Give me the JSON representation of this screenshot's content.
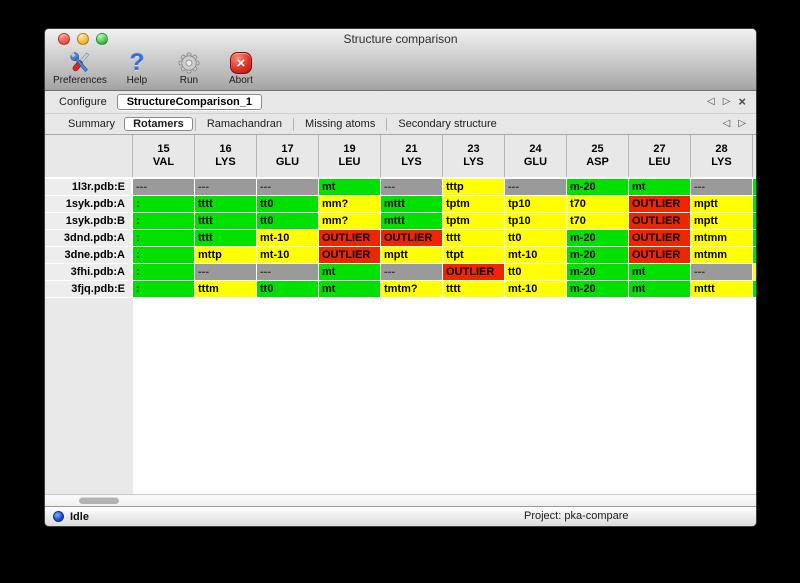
{
  "window": {
    "title": "Structure comparison"
  },
  "toolbar": {
    "items": [
      {
        "label": "Preferences",
        "icon": "tools-icon"
      },
      {
        "label": "Help",
        "icon": "help-icon",
        "glyph": "?"
      },
      {
        "label": "Run",
        "icon": "gear-icon"
      },
      {
        "label": "Abort",
        "icon": "abort-icon",
        "glyph": "×"
      }
    ]
  },
  "configure": {
    "label": "Configure",
    "instance_tab": "StructureComparison_1"
  },
  "nav": {
    "back": "◁",
    "forward": "▷",
    "close": "×"
  },
  "tabs": {
    "active": "Rotamers",
    "items": [
      {
        "label": "Summary"
      },
      {
        "label": "Rotamers"
      },
      {
        "label": "Ramachandran"
      },
      {
        "label": "Missing atoms"
      },
      {
        "label": "Secondary structure"
      }
    ]
  },
  "table": {
    "columns": [
      {
        "num": "15",
        "res": "VAL"
      },
      {
        "num": "16",
        "res": "LYS"
      },
      {
        "num": "17",
        "res": "GLU"
      },
      {
        "num": "19",
        "res": "LEU"
      },
      {
        "num": "21",
        "res": "LYS"
      },
      {
        "num": "23",
        "res": "LYS"
      },
      {
        "num": "24",
        "res": "GLU"
      },
      {
        "num": "25",
        "res": "ASP"
      },
      {
        "num": "27",
        "res": "LEU"
      },
      {
        "num": "28",
        "res": "LYS"
      }
    ],
    "rows": [
      {
        "label": "1l3r.pdb:E",
        "partial": "green",
        "cells": [
          {
            "text": "---",
            "status": "gray"
          },
          {
            "text": "---",
            "status": "gray"
          },
          {
            "text": "---",
            "status": "gray"
          },
          {
            "text": "mt",
            "status": "green"
          },
          {
            "text": "---",
            "status": "gray"
          },
          {
            "text": "tttp",
            "status": "yellow"
          },
          {
            "text": "---",
            "status": "gray"
          },
          {
            "text": "m-20",
            "status": "green"
          },
          {
            "text": "mt",
            "status": "green"
          },
          {
            "text": "---",
            "status": "gray"
          }
        ]
      },
      {
        "label": "1syk.pdb:A",
        "partial": "green",
        "cells": [
          {
            "text": ":",
            "status": "green"
          },
          {
            "text": "tttt",
            "status": "green"
          },
          {
            "text": "tt0",
            "status": "green"
          },
          {
            "text": "mm?",
            "status": "yellow"
          },
          {
            "text": "mttt",
            "status": "green"
          },
          {
            "text": "tptm",
            "status": "yellow"
          },
          {
            "text": "tp10",
            "status": "yellow"
          },
          {
            "text": "t70",
            "status": "yellow"
          },
          {
            "text": "OUTLIER",
            "status": "red"
          },
          {
            "text": "mptt",
            "status": "yellow"
          }
        ]
      },
      {
        "label": "1syk.pdb:B",
        "partial": "green",
        "cells": [
          {
            "text": ":",
            "status": "green"
          },
          {
            "text": "tttt",
            "status": "green"
          },
          {
            "text": "tt0",
            "status": "green"
          },
          {
            "text": "mm?",
            "status": "yellow"
          },
          {
            "text": "mttt",
            "status": "green"
          },
          {
            "text": "tptm",
            "status": "yellow"
          },
          {
            "text": "tp10",
            "status": "yellow"
          },
          {
            "text": "t70",
            "status": "yellow"
          },
          {
            "text": "OUTLIER",
            "status": "red"
          },
          {
            "text": "mptt",
            "status": "yellow"
          }
        ]
      },
      {
        "label": "3dnd.pdb:A",
        "partial": "green",
        "cells": [
          {
            "text": ":",
            "status": "green"
          },
          {
            "text": "tttt",
            "status": "green"
          },
          {
            "text": "mt-10",
            "status": "yellow"
          },
          {
            "text": "OUTLIER",
            "status": "red"
          },
          {
            "text": "OUTLIER",
            "status": "red"
          },
          {
            "text": "tttt",
            "status": "yellow"
          },
          {
            "text": "tt0",
            "status": "yellow"
          },
          {
            "text": "m-20",
            "status": "green"
          },
          {
            "text": "OUTLIER",
            "status": "red"
          },
          {
            "text": "mtmm",
            "status": "yellow"
          }
        ]
      },
      {
        "label": "3dne.pdb:A",
        "partial": "green",
        "cells": [
          {
            "text": ":",
            "status": "green"
          },
          {
            "text": "mttp",
            "status": "yellow"
          },
          {
            "text": "mt-10",
            "status": "yellow"
          },
          {
            "text": "OUTLIER",
            "status": "red"
          },
          {
            "text": "mptt",
            "status": "yellow"
          },
          {
            "text": "ttpt",
            "status": "yellow"
          },
          {
            "text": "mt-10",
            "status": "yellow"
          },
          {
            "text": "m-20",
            "status": "green"
          },
          {
            "text": "OUTLIER",
            "status": "red"
          },
          {
            "text": "mtmm",
            "status": "yellow"
          }
        ]
      },
      {
        "label": "3fhi.pdb:A",
        "partial": "yellow",
        "cells": [
          {
            "text": ":",
            "status": "green"
          },
          {
            "text": "---",
            "status": "gray"
          },
          {
            "text": "---",
            "status": "gray"
          },
          {
            "text": "mt",
            "status": "green"
          },
          {
            "text": "---",
            "status": "gray"
          },
          {
            "text": "OUTLIER",
            "status": "red"
          },
          {
            "text": "tt0",
            "status": "yellow"
          },
          {
            "text": "m-20",
            "status": "green"
          },
          {
            "text": "mt",
            "status": "green"
          },
          {
            "text": "---",
            "status": "gray"
          }
        ]
      },
      {
        "label": "3fjq.pdb:E",
        "partial": "green",
        "cells": [
          {
            "text": ":",
            "status": "green"
          },
          {
            "text": "tttm",
            "status": "yellow"
          },
          {
            "text": "tt0",
            "status": "green"
          },
          {
            "text": "mt",
            "status": "green"
          },
          {
            "text": "tmtm?",
            "status": "yellow"
          },
          {
            "text": "tttt",
            "status": "yellow"
          },
          {
            "text": "mt-10",
            "status": "yellow"
          },
          {
            "text": "m-20",
            "status": "green"
          },
          {
            "text": "mt",
            "status": "green"
          },
          {
            "text": "mttt",
            "status": "yellow"
          }
        ]
      }
    ]
  },
  "statusbar": {
    "status": "Idle",
    "project": "Project: pka-compare"
  },
  "colors": {
    "green": "#00e100",
    "yellow": "#ffff00",
    "red": "#ee2600",
    "gray": "#9a9a9a"
  }
}
